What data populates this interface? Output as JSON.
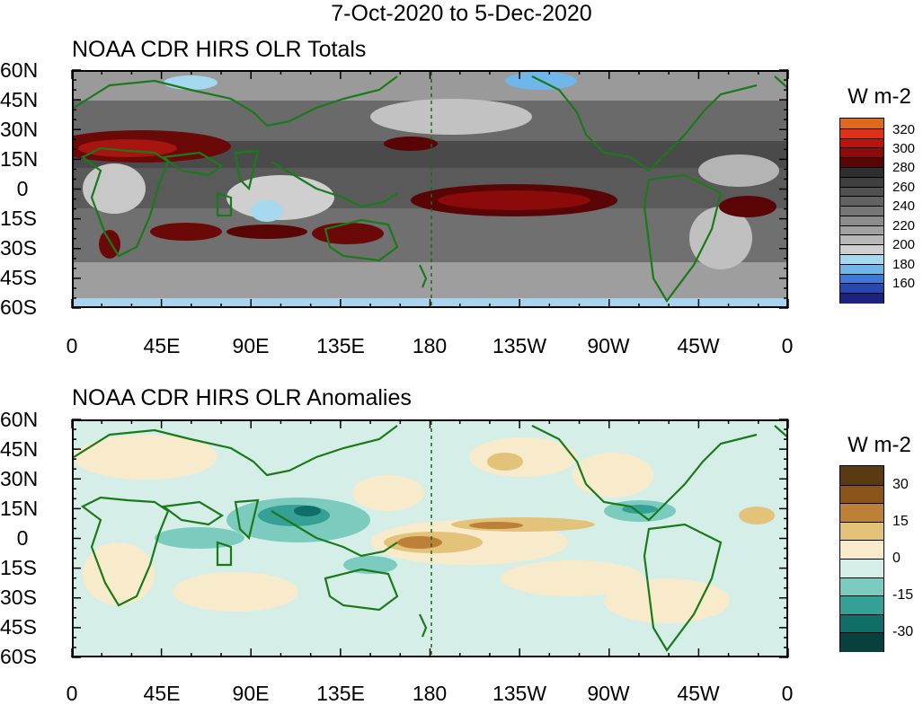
{
  "title": "7-Oct-2020 to 5-Dec-2020",
  "lat_labels": [
    "60N",
    "45N",
    "30N",
    "15N",
    "0",
    "15S",
    "30S",
    "45S",
    "60S"
  ],
  "lon_labels": [
    "0",
    "45E",
    "90E",
    "135E",
    "180",
    "135W",
    "90W",
    "45W",
    "0"
  ],
  "panels": [
    {
      "title": "NOAA CDR HIRS OLR Totals",
      "colorbar": {
        "units": "W m-2",
        "labels": [
          "320",
          "300",
          "280",
          "260",
          "240",
          "220",
          "200",
          "180",
          "160"
        ],
        "colors": [
          "#e06a1c",
          "#e0301a",
          "#b8150e",
          "#8b0a0a",
          "#5a0505",
          "#2e2e2e",
          "#3f3f3f",
          "#505050",
          "#626262",
          "#767676",
          "#8c8c8c",
          "#a2a2a2",
          "#b8b8b8",
          "#cfcfcf",
          "#a6d8f0",
          "#6fb6ea",
          "#3d7ad8",
          "#2847b0",
          "#1a237e"
        ]
      }
    },
    {
      "title": "NOAA CDR HIRS OLR Anomalies",
      "colorbar": {
        "units": "W m-2",
        "labels": [
          "30",
          "15",
          "0",
          "-15",
          "-30"
        ],
        "colors": [
          "#5a3a12",
          "#8a5518",
          "#bd8038",
          "#e3c27a",
          "#f7ebcc",
          "#d6eee8",
          "#7ccbbf",
          "#35a196",
          "#0f6e67",
          "#07403c"
        ]
      }
    }
  ]
}
